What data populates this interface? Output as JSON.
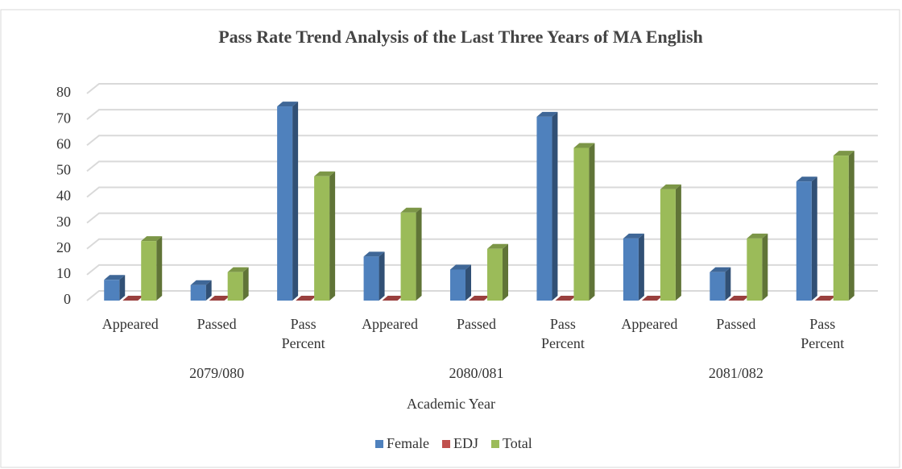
{
  "chart_data": {
    "type": "bar3d",
    "title": "Pass Rate Trend Analysis of the Last Three Years of MA English",
    "x_label": "Academic Year",
    "categories": [
      "Appeared",
      "Passed",
      "Pass Percent",
      "Appeared",
      "Passed",
      "Pass Percent",
      "Appeared",
      "Passed",
      "Pass Percent"
    ],
    "groups": [
      "2079/080",
      "2080/081",
      "2081/082"
    ],
    "series": [
      {
        "name": "Female",
        "color": "#4f81bd",
        "values": [
          8,
          6,
          75,
          17,
          12,
          71,
          24,
          11,
          46
        ]
      },
      {
        "name": "EDJ",
        "color": "#c0504d",
        "values": [
          0,
          0,
          0,
          0,
          0,
          0,
          0,
          0,
          0
        ]
      },
      {
        "name": "Total",
        "color": "#9bbb59",
        "values": [
          23,
          11,
          48,
          34,
          20,
          59,
          43,
          24,
          56
        ]
      }
    ],
    "ylim": [
      0,
      80
    ],
    "yticks": [
      0,
      10,
      20,
      30,
      40,
      50,
      60,
      70,
      80
    ],
    "grid": true,
    "legend": "bottom"
  }
}
